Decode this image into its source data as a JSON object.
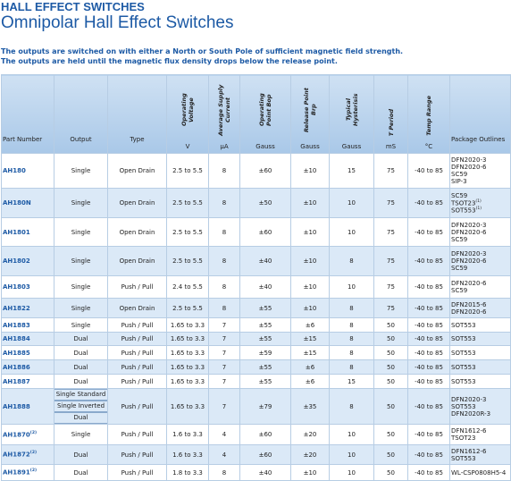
{
  "header": {
    "category": "HALL EFFECT SWITCHES",
    "title": "Omnipolar Hall Effect Switches"
  },
  "intro": [
    "The outputs are switched on with either a North or South Pole of sufficient magnetic field strength.",
    "The outputs are held until the magnetic flux density drops below the release point."
  ],
  "table": {
    "columns": [
      {
        "label": "Part Number",
        "rotated": false
      },
      {
        "label": "Output",
        "rotated": false
      },
      {
        "label": "Type",
        "rotated": false
      },
      {
        "label": "Operating Voltage",
        "unit": "V",
        "rotated": true
      },
      {
        "label": "Average Supply Current",
        "unit": "µA",
        "rotated": true
      },
      {
        "label": "Operating Point Bop",
        "unit": "Gauss",
        "rotated": true
      },
      {
        "label": "Release Point Brp",
        "unit": "Gauss",
        "rotated": true
      },
      {
        "label": "Typical Hysterisis",
        "unit": "Gauss",
        "rotated": true
      },
      {
        "label": "T Period",
        "unit": "mS",
        "rotated": true
      },
      {
        "label": "Temp Range",
        "unit": "°C",
        "rotated": true
      },
      {
        "label": "Package Outlines",
        "rotated": false
      }
    ],
    "rows": [
      [
        {
          "text": "AH180"
        },
        [
          "Single"
        ],
        "Open Drain",
        "2.5 to 5.5",
        "8",
        "±60",
        "±10",
        "15",
        "75",
        "-40 to 85",
        [
          {
            "text": "DFN2020-3"
          },
          {
            "text": "DFN2020-6"
          },
          {
            "text": "SC59"
          },
          {
            "text": "SIP-3"
          }
        ]
      ],
      [
        {
          "text": "AH180N"
        },
        [
          "Single"
        ],
        "Open Drain",
        "2.5 to 5.5",
        "8",
        "±50",
        "±10",
        "10",
        "75",
        "-40 to 85",
        [
          {
            "text": "SC59"
          },
          {
            "text": "TSOT23",
            "note": "(1)"
          },
          {
            "text": "SOT553",
            "note": "(1)"
          }
        ]
      ],
      [
        {
          "text": "AH1801"
        },
        [
          "Single"
        ],
        "Open Drain",
        "2.5 to 5.5",
        "8",
        "±60",
        "±10",
        "10",
        "75",
        "-40 to 85",
        [
          {
            "text": "DFN2020-3"
          },
          {
            "text": "DFN2020-6"
          },
          {
            "text": "SC59"
          }
        ]
      ],
      [
        {
          "text": "AH1802"
        },
        [
          "Single"
        ],
        "Open Drain",
        "2.5 to 5.5",
        "8",
        "±40",
        "±10",
        "8",
        "75",
        "-40 to 85",
        [
          {
            "text": "DFN2020-3"
          },
          {
            "text": "DFN2020-6"
          },
          {
            "text": "SC59"
          }
        ]
      ],
      [
        {
          "text": "AH1803"
        },
        [
          "Single"
        ],
        "Push / Pull",
        "2.4 to 5.5",
        "8",
        "±40",
        "±10",
        "10",
        "75",
        "-40 to 85",
        [
          {
            "text": "DFN2020-6"
          },
          {
            "text": "SC59"
          }
        ]
      ],
      [
        {
          "text": "AH1822"
        },
        [
          "Single"
        ],
        "Open Drain",
        "2.5 to 5.5",
        "8",
        "±55",
        "±10",
        "8",
        "75",
        "-40 to 85",
        [
          {
            "text": "DFN2015-6"
          },
          {
            "text": "DFN2020-6"
          }
        ]
      ],
      [
        {
          "text": "AH1883"
        },
        [
          "Single"
        ],
        "Push / Pull",
        "1.65 to 3.3",
        "7",
        "±55",
        "±6",
        "8",
        "50",
        "-40 to 85",
        [
          {
            "text": "SOT553"
          }
        ]
      ],
      [
        {
          "text": "AH1884"
        },
        [
          "Dual"
        ],
        "Push / Pull",
        "1.65 to 3.3",
        "7",
        "±55",
        "±15",
        "8",
        "50",
        "-40 to 85",
        [
          {
            "text": "SOT553"
          }
        ]
      ],
      [
        {
          "text": "AH1885"
        },
        [
          "Dual"
        ],
        "Push / Pull",
        "1.65 to 3.3",
        "7",
        "±59",
        "±15",
        "8",
        "50",
        "-40 to 85",
        [
          {
            "text": "SOT553"
          }
        ]
      ],
      [
        {
          "text": "AH1886"
        },
        [
          "Dual"
        ],
        "Push / Pull",
        "1.65 to 3.3",
        "7",
        "±55",
        "±6",
        "8",
        "50",
        "-40 to 85",
        [
          {
            "text": "SOT553"
          }
        ]
      ],
      [
        {
          "text": "AH1887"
        },
        [
          "Dual"
        ],
        "Push / Pull",
        "1.65 to 3.3",
        "7",
        "±55",
        "±6",
        "15",
        "50",
        "-40 to 85",
        [
          {
            "text": "SOT553"
          }
        ]
      ],
      [
        {
          "text": "AH1888"
        },
        [
          "Single Standard",
          "Single Inverted",
          "Dual"
        ],
        "Push / Pull",
        "1.65 to 3.3",
        "7",
        "±79",
        "±35",
        "8",
        "50",
        "-40 to 85",
        [
          {
            "text": "DFN2020-3"
          },
          {
            "text": "SOT553"
          },
          {
            "text": "DFN2020R-3"
          }
        ]
      ],
      [
        {
          "text": "AH1870",
          "note": "(2)"
        },
        [
          "Single"
        ],
        "Push / Pull",
        "1.6 to 3.3",
        "4",
        "±60",
        "±20",
        "10",
        "50",
        "-40 to 85",
        [
          {
            "text": "DFN1612-6"
          },
          {
            "text": "TSOT23"
          }
        ]
      ],
      [
        {
          "text": "AH1872",
          "note": "(2)"
        },
        [
          "Dual"
        ],
        "Push / Pull",
        "1.6 to 3.3",
        "4",
        "±60",
        "±20",
        "10",
        "50",
        "-40 to 85",
        [
          {
            "text": "DFN1612-6"
          },
          {
            "text": "SOT553"
          }
        ]
      ],
      [
        {
          "text": "AH1891",
          "note": "(2)"
        },
        [
          "Dual"
        ],
        "Push / Pull",
        "1.8 to 3.3",
        "8",
        "±40",
        "±10",
        "10",
        "50",
        "-40 to 85",
        [
          {
            "text": "WL-CSP0808H5-4"
          }
        ]
      ]
    ]
  }
}
